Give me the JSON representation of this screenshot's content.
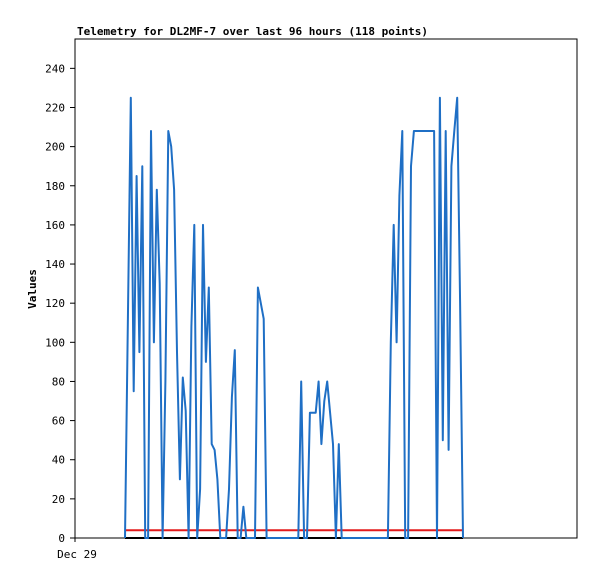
{
  "chart_data": {
    "type": "line",
    "title": "Telemetry for DL2MF-7 over last 96 hours (118 points)",
    "xlabel": "",
    "ylabel": "Values",
    "x_tick_labels": [
      "Dec 29"
    ],
    "y_ticks": [
      0,
      20,
      40,
      60,
      80,
      100,
      120,
      140,
      160,
      180,
      200,
      220,
      240
    ],
    "ylim": [
      0,
      255
    ],
    "grid": false,
    "colors": {
      "series1": "#1f6fc5",
      "series2": "#e41a1c",
      "series3": "#000000"
    },
    "series": [
      {
        "values": [
          0,
          112,
          225,
          75,
          185,
          95,
          190,
          0,
          0,
          208,
          100,
          178,
          130,
          0,
          80,
          208,
          200,
          178,
          95,
          30,
          82,
          65,
          0,
          108,
          160,
          0,
          25,
          160,
          90,
          128,
          48,
          45,
          30,
          0,
          0,
          0,
          25,
          72,
          96,
          0,
          0,
          16,
          0,
          0,
          0,
          0,
          128,
          120,
          112,
          0,
          0,
          0,
          0,
          0,
          0,
          0,
          0,
          0,
          0,
          0,
          0,
          80,
          0,
          0,
          64,
          64,
          64,
          80,
          48,
          70,
          80,
          64,
          48,
          0,
          48,
          0,
          0,
          0,
          0,
          0,
          0,
          0,
          0,
          0,
          0,
          0,
          0,
          0,
          0,
          0,
          0,
          0,
          100,
          160,
          100,
          175,
          208,
          0,
          0,
          190,
          208,
          208,
          208,
          208,
          208,
          208,
          208,
          208,
          0,
          225,
          50,
          208,
          45,
          190,
          208,
          225,
          120,
          0
        ]
      },
      {
        "values": [
          4,
          4
        ]
      },
      {
        "values": [
          0,
          0
        ]
      }
    ]
  }
}
